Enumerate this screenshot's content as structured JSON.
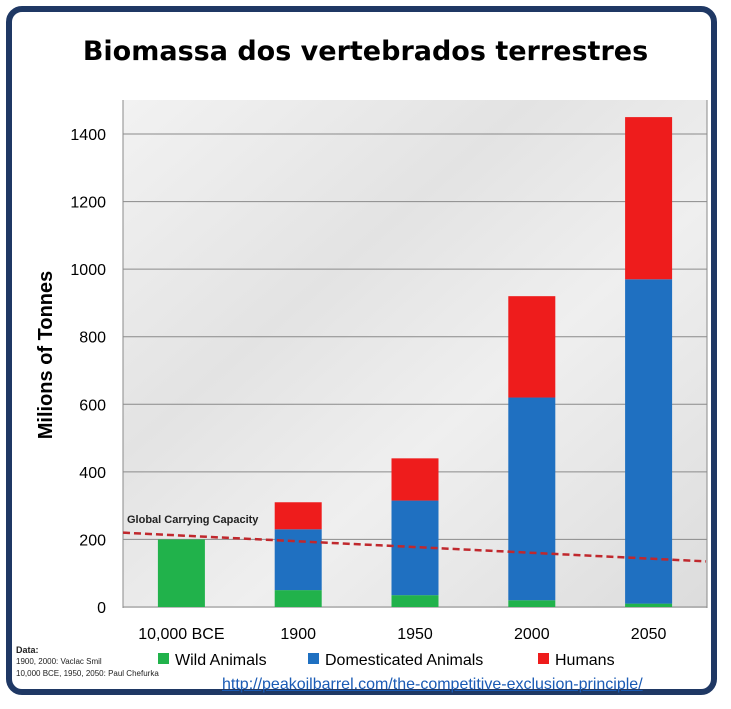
{
  "title": "Biomassa dos vertebrados terrestres",
  "chart_data": {
    "type": "bar",
    "stacked": true,
    "categories": [
      "10,000 BCE",
      "1900",
      "1950",
      "2000",
      "2050"
    ],
    "series": [
      {
        "name": "Wild Animals",
        "color": "#21b24b",
        "values": [
          200,
          50,
          35,
          20,
          10
        ]
      },
      {
        "name": "Domesticated Animals",
        "color": "#1f70c1",
        "values": [
          0,
          180,
          280,
          600,
          960
        ]
      },
      {
        "name": "Humans",
        "color": "#ee1c1c",
        "values": [
          0,
          80,
          125,
          300,
          480
        ]
      }
    ],
    "ylabel": "Milions of Tonnes",
    "xlabel": "",
    "ylim": [
      0,
      1500
    ],
    "yticks": [
      0,
      200,
      400,
      600,
      800,
      1000,
      1200,
      1400
    ],
    "grid": true,
    "legend_position": "bottom",
    "annotation": {
      "label": "Global Carrying Capacity",
      "start": 220,
      "end": 135,
      "color": "#c0282d"
    }
  },
  "data_note": {
    "header": "Data:",
    "line1": "1900, 2000: Vaclac Smil",
    "line2": "10,000 BCE, 1950, 2050: Paul Chefurka"
  },
  "url": "http://peakoilbarrel.com/the-competitive-exclusion-principle/"
}
